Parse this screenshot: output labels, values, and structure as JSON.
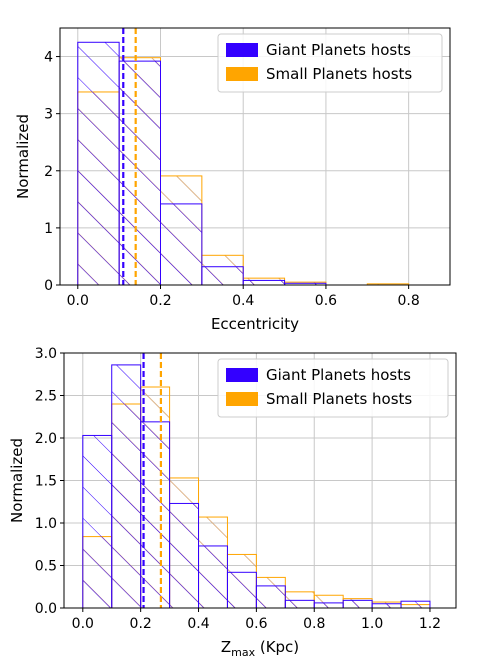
{
  "colors": {
    "giant": "#3300ff",
    "small": "#ffa500",
    "hatch_overlap": "#d4a06a",
    "grid": "#c8c8c8"
  },
  "chart_data": [
    {
      "type": "bar",
      "subtype": "step-histogram",
      "xlabel": "Eccentricity",
      "ylabel": "Normalized",
      "xlim": [
        -0.043,
        0.9
      ],
      "ylim": [
        0,
        4.5
      ],
      "xticks": [
        0.0,
        0.2,
        0.4,
        0.6,
        0.8
      ],
      "xtick_labels": [
        "0.0",
        "0.2",
        "0.4",
        "0.6",
        "0.8"
      ],
      "yticks": [
        0,
        1,
        2,
        3,
        4
      ],
      "ytick_labels": [
        "0",
        "1",
        "2",
        "3",
        "4"
      ],
      "grid": true,
      "legend_position": "top-right",
      "series": [
        {
          "name": "Giant Planets hosts",
          "color": "#3300ff",
          "bin_edges": [
            0.0,
            0.1,
            0.2,
            0.3,
            0.4,
            0.5,
            0.6,
            0.7,
            0.8,
            0.9
          ],
          "values": [
            4.25,
            3.92,
            1.42,
            0.32,
            0.08,
            0.03,
            0.0,
            0.0,
            0.0
          ],
          "mean_line": 0.11
        },
        {
          "name": "Small Planets hosts",
          "color": "#ffa500",
          "bin_edges": [
            0.0,
            0.1,
            0.2,
            0.3,
            0.4,
            0.5,
            0.6,
            0.7,
            0.8,
            0.9
          ],
          "values": [
            3.38,
            3.98,
            1.91,
            0.52,
            0.12,
            0.05,
            0.0,
            0.02,
            0.0
          ],
          "mean_line": 0.14
        }
      ]
    },
    {
      "type": "bar",
      "subtype": "step-histogram",
      "xlabel": "Z",
      "xlabel_subscript": "max",
      "xlabel_suffix": " (Kpc)",
      "ylabel": "Normalized",
      "xlim": [
        -0.065,
        1.29
      ],
      "ylim": [
        0,
        3.0
      ],
      "xticks": [
        0.0,
        0.2,
        0.4,
        0.6,
        0.8,
        1.0,
        1.2
      ],
      "xtick_labels": [
        "0.0",
        "0.2",
        "0.4",
        "0.6",
        "0.8",
        "1.0",
        "1.2"
      ],
      "yticks": [
        0.0,
        0.5,
        1.0,
        1.5,
        2.0,
        2.5,
        3.0
      ],
      "ytick_labels": [
        "0.0",
        "0.5",
        "1.0",
        "1.5",
        "2.0",
        "2.5",
        "3.0"
      ],
      "grid": true,
      "legend_position": "top-right",
      "series": [
        {
          "name": "Giant Planets hosts",
          "color": "#3300ff",
          "bin_edges": [
            0.0,
            0.1,
            0.2,
            0.3,
            0.4,
            0.5,
            0.6,
            0.7,
            0.8,
            0.9,
            1.0,
            1.1,
            1.2
          ],
          "values": [
            2.03,
            2.86,
            2.19,
            1.23,
            0.73,
            0.42,
            0.26,
            0.09,
            0.06,
            0.09,
            0.05,
            0.08
          ],
          "mean_line": 0.21
        },
        {
          "name": "Small Planets hosts",
          "color": "#ffa500",
          "bin_edges": [
            0.0,
            0.1,
            0.2,
            0.3,
            0.4,
            0.5,
            0.6,
            0.7,
            0.8,
            0.9,
            1.0,
            1.1,
            1.2
          ],
          "values": [
            0.84,
            2.4,
            2.6,
            1.53,
            1.07,
            0.63,
            0.36,
            0.19,
            0.15,
            0.11,
            0.07,
            0.04
          ],
          "mean_line": 0.27
        }
      ]
    }
  ]
}
